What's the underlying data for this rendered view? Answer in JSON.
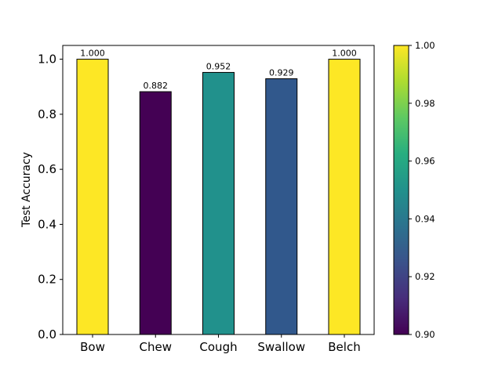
{
  "chart_data": {
    "type": "bar",
    "categories": [
      "Bow",
      "Chew",
      "Cough",
      "Swallow",
      "Belch"
    ],
    "values": [
      1.0,
      0.882,
      0.952,
      0.929,
      1.0
    ],
    "value_labels": [
      "1.000",
      "0.882",
      "0.952",
      "0.929",
      "1.000"
    ],
    "ylabel": "Test Accuracy",
    "xlabel": "",
    "ylim": [
      0,
      1.05
    ],
    "yticks": [
      0.0,
      0.2,
      0.4,
      0.6,
      0.8,
      1.0
    ],
    "ytick_labels": [
      "0.0",
      "0.2",
      "0.4",
      "0.6",
      "0.8",
      "1.0"
    ],
    "grid": false,
    "colormap": "viridis",
    "colorbar": {
      "range": [
        0.9,
        1.0
      ],
      "ticks": [
        0.9,
        0.92,
        0.94,
        0.96,
        0.98,
        1.0
      ],
      "tick_labels": [
        "0.90",
        "0.92",
        "0.94",
        "0.96",
        "0.98",
        "1.00"
      ]
    },
    "bar_edge_color": "#000000",
    "colors": {
      "Bow": "#fde725",
      "Chew": "#440154",
      "Cough": "#21918c",
      "Swallow": "#31588c",
      "Belch": "#fde725"
    }
  }
}
